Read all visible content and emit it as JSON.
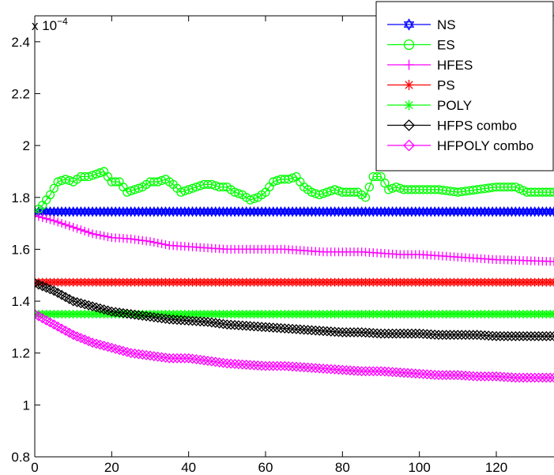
{
  "chart_data": {
    "type": "line",
    "title": "",
    "xlabel": "",
    "ylabel": "",
    "y_exponent_label": "x 10",
    "y_exponent_power": "−4",
    "xlim": [
      0,
      135
    ],
    "ylim": [
      0.8,
      2.5
    ],
    "xticks": [
      "0",
      "20",
      "40",
      "60",
      "80",
      "100",
      "120"
    ],
    "yticks": [
      "0.8",
      "1",
      "1.2",
      "1.4",
      "1.6",
      "1.8",
      "2",
      "2.2",
      "2.4"
    ],
    "grid": false,
    "legend_position": "top-right",
    "series": [
      {
        "name": "NS",
        "color": "#0000ff",
        "marker": "hexagram",
        "x": [
          0,
          135
        ],
        "y": [
          1.745,
          1.745
        ]
      },
      {
        "name": "ES",
        "color": "#00ff00",
        "marker": "circle",
        "x": [
          0,
          2,
          4,
          6,
          8,
          10,
          12,
          14,
          16,
          18,
          20,
          22,
          24,
          26,
          28,
          30,
          32,
          34,
          36,
          38,
          40,
          42,
          44,
          46,
          48,
          50,
          52,
          54,
          56,
          58,
          60,
          62,
          64,
          66,
          68,
          70,
          72,
          74,
          76,
          78,
          80,
          82,
          84,
          86,
          88,
          90,
          92,
          94,
          96,
          98,
          100,
          105,
          110,
          115,
          120,
          125,
          128,
          130,
          135
        ],
        "y": [
          1.74,
          1.77,
          1.81,
          1.86,
          1.87,
          1.86,
          1.88,
          1.88,
          1.89,
          1.9,
          1.86,
          1.86,
          1.82,
          1.83,
          1.84,
          1.86,
          1.86,
          1.87,
          1.85,
          1.82,
          1.83,
          1.84,
          1.85,
          1.85,
          1.84,
          1.84,
          1.82,
          1.81,
          1.79,
          1.8,
          1.82,
          1.86,
          1.87,
          1.87,
          1.88,
          1.84,
          1.82,
          1.81,
          1.82,
          1.83,
          1.82,
          1.82,
          1.82,
          1.8,
          1.88,
          1.88,
          1.83,
          1.84,
          1.83,
          1.83,
          1.83,
          1.83,
          1.82,
          1.83,
          1.84,
          1.84,
          1.82,
          1.82,
          1.82
        ]
      },
      {
        "name": "HFES",
        "color": "#ff00ff",
        "marker": "plus",
        "x": [
          0,
          5,
          10,
          15,
          20,
          25,
          30,
          35,
          40,
          45,
          50,
          55,
          60,
          65,
          70,
          75,
          80,
          85,
          90,
          95,
          100,
          105,
          110,
          115,
          120,
          125,
          130,
          135
        ],
        "y": [
          1.73,
          1.71,
          1.685,
          1.66,
          1.645,
          1.64,
          1.63,
          1.615,
          1.61,
          1.605,
          1.6,
          1.6,
          1.6,
          1.6,
          1.595,
          1.59,
          1.59,
          1.59,
          1.585,
          1.58,
          1.58,
          1.575,
          1.57,
          1.565,
          1.56,
          1.558,
          1.555,
          1.553
        ]
      },
      {
        "name": "PS",
        "color": "#ff0000",
        "marker": "asterisk",
        "x": [
          0,
          135
        ],
        "y": [
          1.473,
          1.473
        ]
      },
      {
        "name": "POLY",
        "color": "#00ff00",
        "marker": "asterisk",
        "x": [
          0,
          135
        ],
        "y": [
          1.35,
          1.35
        ]
      },
      {
        "name": "HFPS combo",
        "color": "#000000",
        "marker": "diamond",
        "x": [
          0,
          5,
          10,
          15,
          20,
          25,
          30,
          35,
          40,
          45,
          50,
          55,
          60,
          65,
          70,
          75,
          80,
          85,
          90,
          95,
          100,
          105,
          110,
          115,
          120,
          125,
          130,
          135
        ],
        "y": [
          1.47,
          1.44,
          1.4,
          1.38,
          1.36,
          1.35,
          1.34,
          1.33,
          1.325,
          1.32,
          1.31,
          1.305,
          1.3,
          1.295,
          1.29,
          1.285,
          1.28,
          1.28,
          1.275,
          1.275,
          1.275,
          1.27,
          1.27,
          1.27,
          1.265,
          1.265,
          1.265,
          1.265
        ]
      },
      {
        "name": "HFPOLY combo",
        "color": "#ff00ff",
        "marker": "diamond",
        "x": [
          0,
          5,
          10,
          15,
          20,
          25,
          30,
          35,
          40,
          45,
          50,
          55,
          60,
          65,
          70,
          75,
          80,
          85,
          90,
          95,
          100,
          105,
          110,
          115,
          120,
          125,
          130,
          135
        ],
        "y": [
          1.35,
          1.31,
          1.27,
          1.24,
          1.22,
          1.2,
          1.19,
          1.18,
          1.18,
          1.17,
          1.16,
          1.155,
          1.15,
          1.15,
          1.145,
          1.14,
          1.135,
          1.13,
          1.13,
          1.125,
          1.12,
          1.115,
          1.115,
          1.11,
          1.11,
          1.105,
          1.105,
          1.105
        ]
      }
    ]
  }
}
